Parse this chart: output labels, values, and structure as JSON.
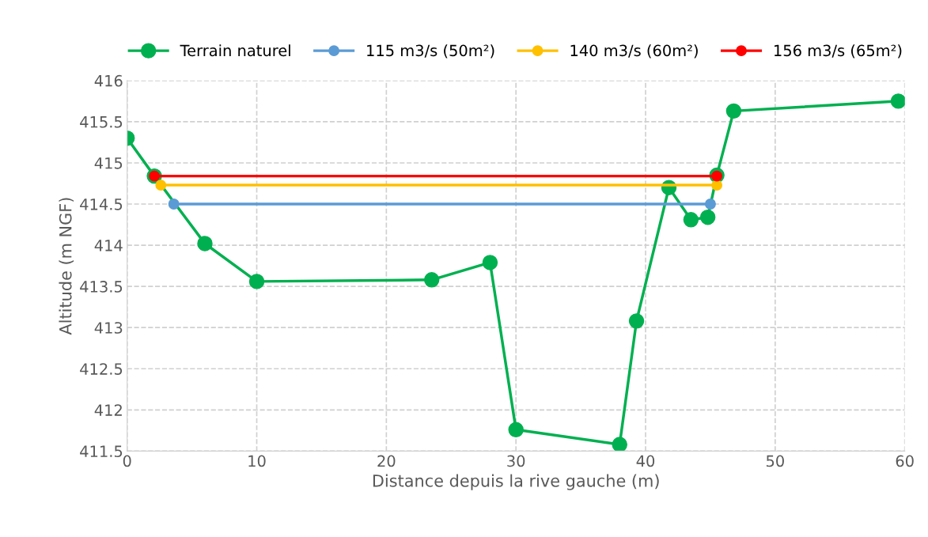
{
  "chart_data": {
    "type": "line",
    "xlabel": "Distance depuis la rive gauche (m)",
    "ylabel": "Altitude (m NGF)",
    "xlim": [
      0,
      60
    ],
    "xticks": [
      0,
      10,
      20,
      30,
      40,
      50,
      60
    ],
    "ylim": [
      411.5,
      416
    ],
    "yticks": [
      411.5,
      412,
      412.5,
      413,
      413.5,
      414,
      414.5,
      415,
      415.5,
      416
    ],
    "grid": true,
    "legend": "top",
    "marker": "circle",
    "line_style": "solid",
    "series": [
      {
        "name": "Terrain naturel",
        "color": "#00b050",
        "x": [
          0,
          2.1,
          6.0,
          10.0,
          23.5,
          28.0,
          30.0,
          38.0,
          39.3,
          41.8,
          43.5,
          44.8,
          45.5,
          46.8,
          59.5
        ],
        "values": [
          415.3,
          414.84,
          414.02,
          413.56,
          413.58,
          413.79,
          411.76,
          411.58,
          413.08,
          414.7,
          414.31,
          414.34,
          414.85,
          415.63,
          415.75
        ]
      },
      {
        "name": "115 m3/s (50m²)",
        "color": "#5b9bd5",
        "x": [
          3.6,
          45.0
        ],
        "values": [
          414.5,
          414.5
        ]
      },
      {
        "name": "140 m3/s (60m²)",
        "color": "#ffc000",
        "x": [
          2.6,
          45.5
        ],
        "values": [
          414.73,
          414.73
        ]
      },
      {
        "name": "156 m3/s (65m²)",
        "color": "#ff0000",
        "x": [
          2.1,
          45.5
        ],
        "values": [
          414.84,
          414.84
        ]
      }
    ]
  }
}
